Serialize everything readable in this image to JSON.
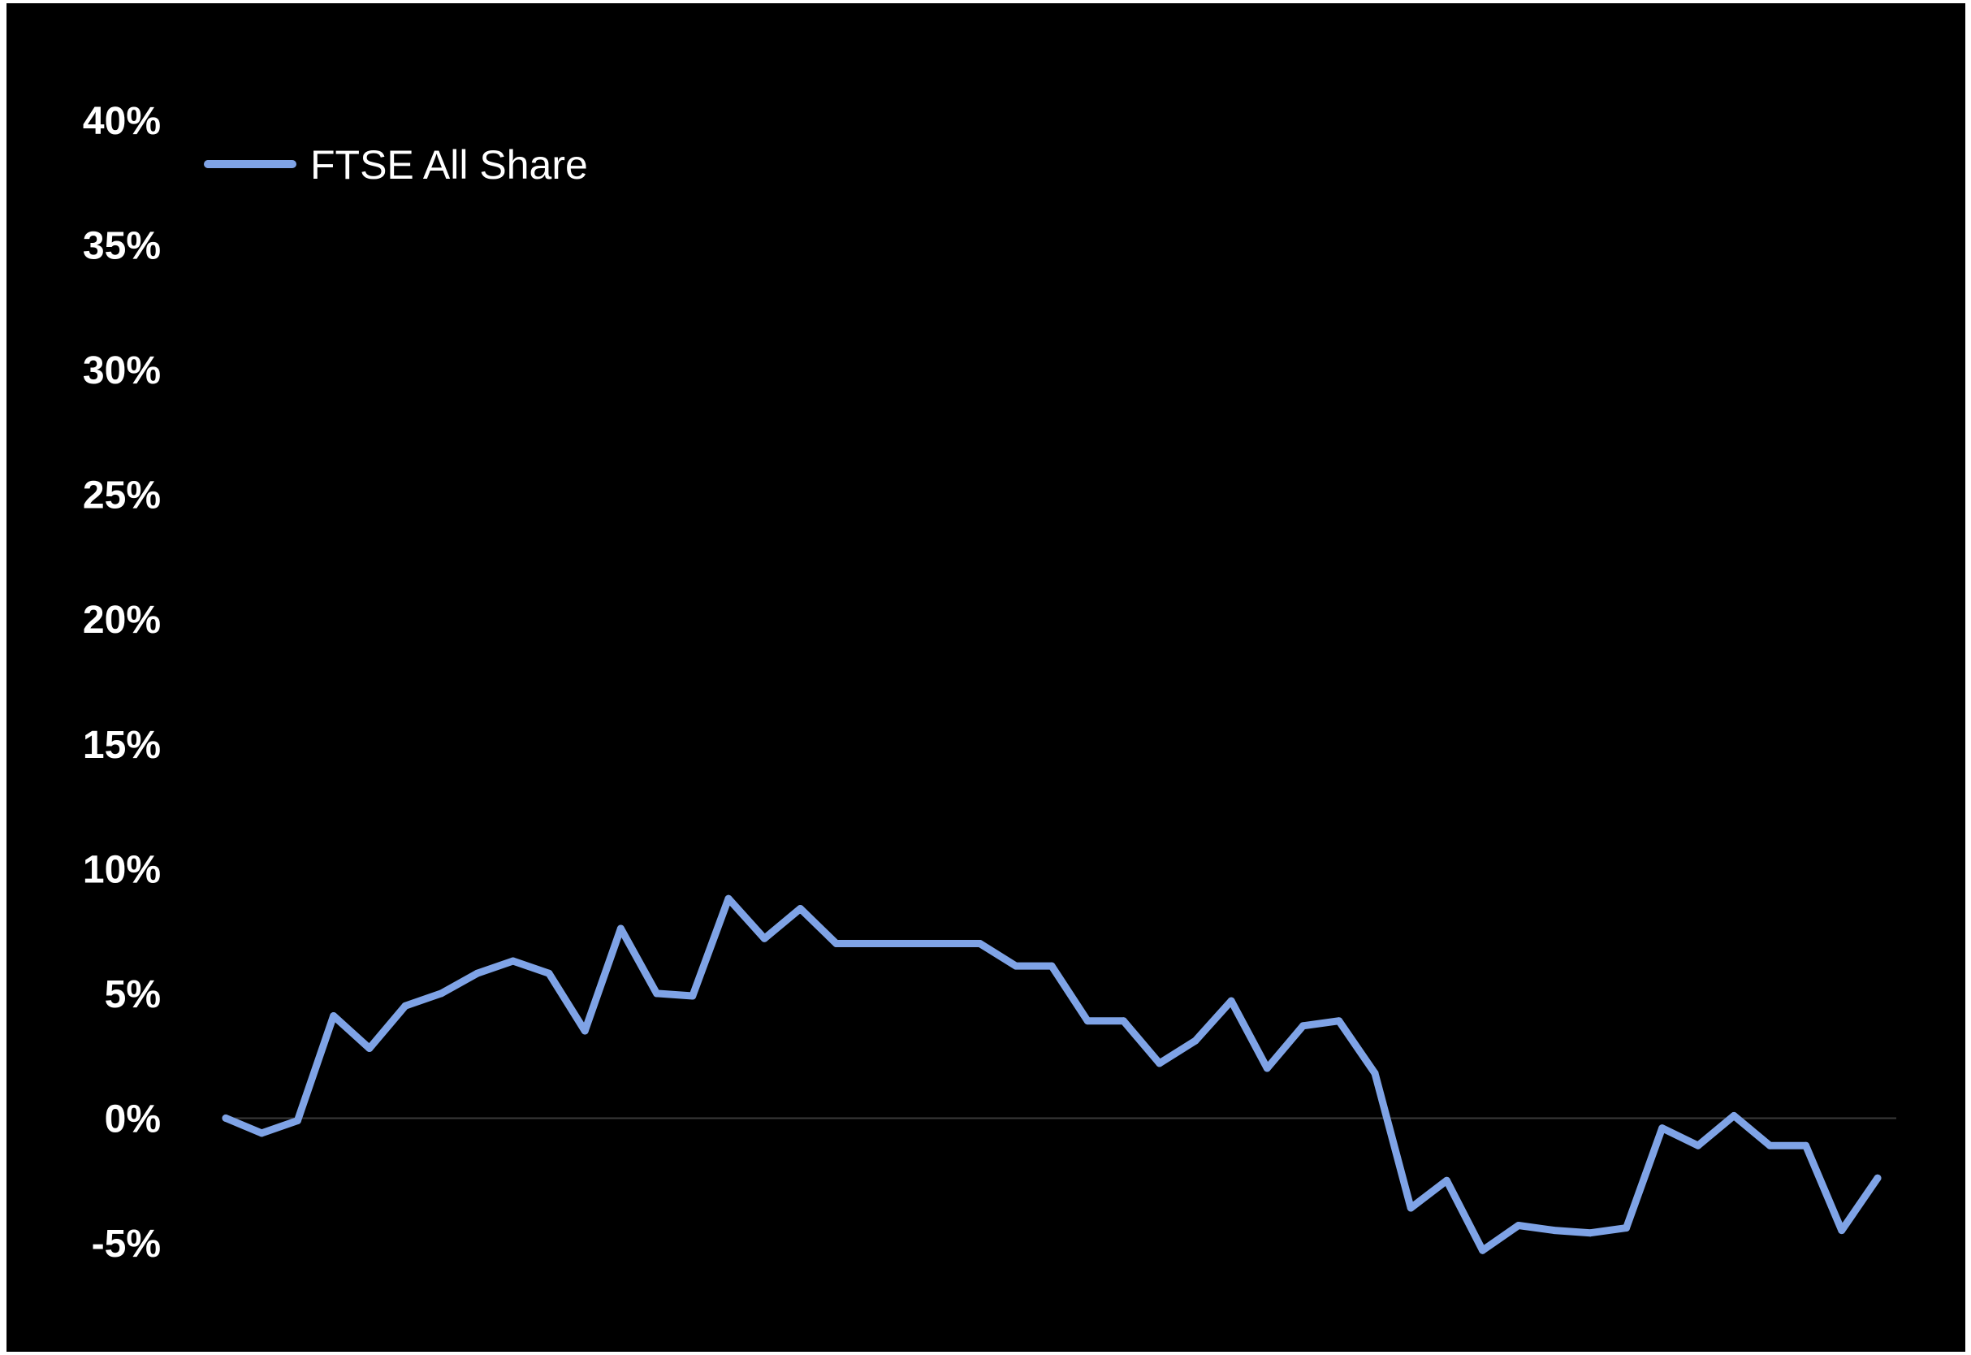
{
  "chart_data": {
    "type": "line",
    "title": "",
    "xlabel": "",
    "ylabel": "",
    "ylim": [
      -5,
      40
    ],
    "y_ticks": [
      "-5%",
      "0%",
      "5%",
      "10%",
      "15%",
      "20%",
      "25%",
      "30%",
      "35%",
      "40%"
    ],
    "grid": false,
    "zero_line": true,
    "legend_position": "top-left",
    "background_color": "#000000",
    "text_color": "#ffffff",
    "series": [
      {
        "name": "FTSE All Share",
        "color": "#7fa3e6",
        "values": [
          0.0,
          -0.6,
          -0.1,
          4.1,
          2.8,
          4.5,
          5.0,
          5.8,
          6.3,
          5.8,
          3.5,
          7.6,
          5.0,
          4.9,
          8.8,
          7.2,
          8.4,
          7.0,
          7.0,
          7.0,
          7.0,
          7.0,
          6.1,
          6.1,
          3.9,
          3.9,
          2.2,
          3.1,
          4.7,
          2.0,
          3.7,
          3.9,
          1.8,
          -3.6,
          -2.5,
          -5.3,
          -4.3,
          -4.5,
          -4.6,
          -4.4,
          -0.4,
          -1.1,
          0.1,
          -1.1,
          -1.1,
          -4.5,
          -2.4
        ]
      }
    ]
  }
}
